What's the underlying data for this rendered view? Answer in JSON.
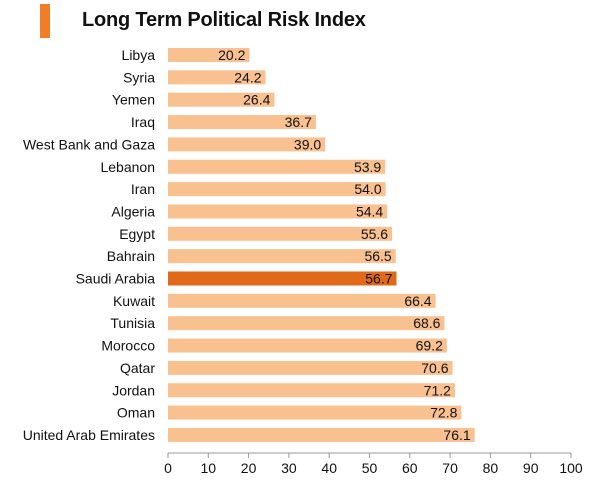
{
  "title": "Long Term Political Risk Index",
  "colors": {
    "bar": "#F9C090",
    "highlight_bar": "#E0691A",
    "title_accent": "#F07E26",
    "axis": "#999999",
    "text": "#111111"
  },
  "chart_data": {
    "type": "bar",
    "orientation": "horizontal",
    "title": "Long Term Political Risk Index",
    "xlabel": "",
    "ylabel": "",
    "xlim": [
      0,
      100
    ],
    "x_ticks": [
      0,
      10,
      20,
      30,
      40,
      50,
      60,
      70,
      80,
      90,
      100
    ],
    "grid": false,
    "legend": "none",
    "highlight": "Saudi Arabia",
    "categories": [
      "Libya",
      "Syria",
      "Yemen",
      "Iraq",
      "West Bank and Gaza",
      "Lebanon",
      "Iran",
      "Algeria",
      "Egypt",
      "Bahrain",
      "Saudi Arabia",
      "Kuwait",
      "Tunisia",
      "Morocco",
      "Qatar",
      "Jordan",
      "Oman",
      "United Arab Emirates"
    ],
    "values": [
      20.2,
      24.2,
      26.4,
      36.7,
      39.0,
      53.9,
      54.0,
      54.4,
      55.6,
      56.5,
      56.7,
      66.4,
      68.6,
      69.2,
      70.6,
      71.2,
      72.8,
      76.1
    ],
    "value_labels": [
      "20.2",
      "24.2",
      "26.4",
      "36.7",
      "39.0",
      "53.9",
      "54.0",
      "54.4",
      "55.6",
      "56.5",
      "56.7",
      "66.4",
      "68.6",
      "69.2",
      "70.6",
      "71.2",
      "72.8",
      "76.1"
    ]
  }
}
